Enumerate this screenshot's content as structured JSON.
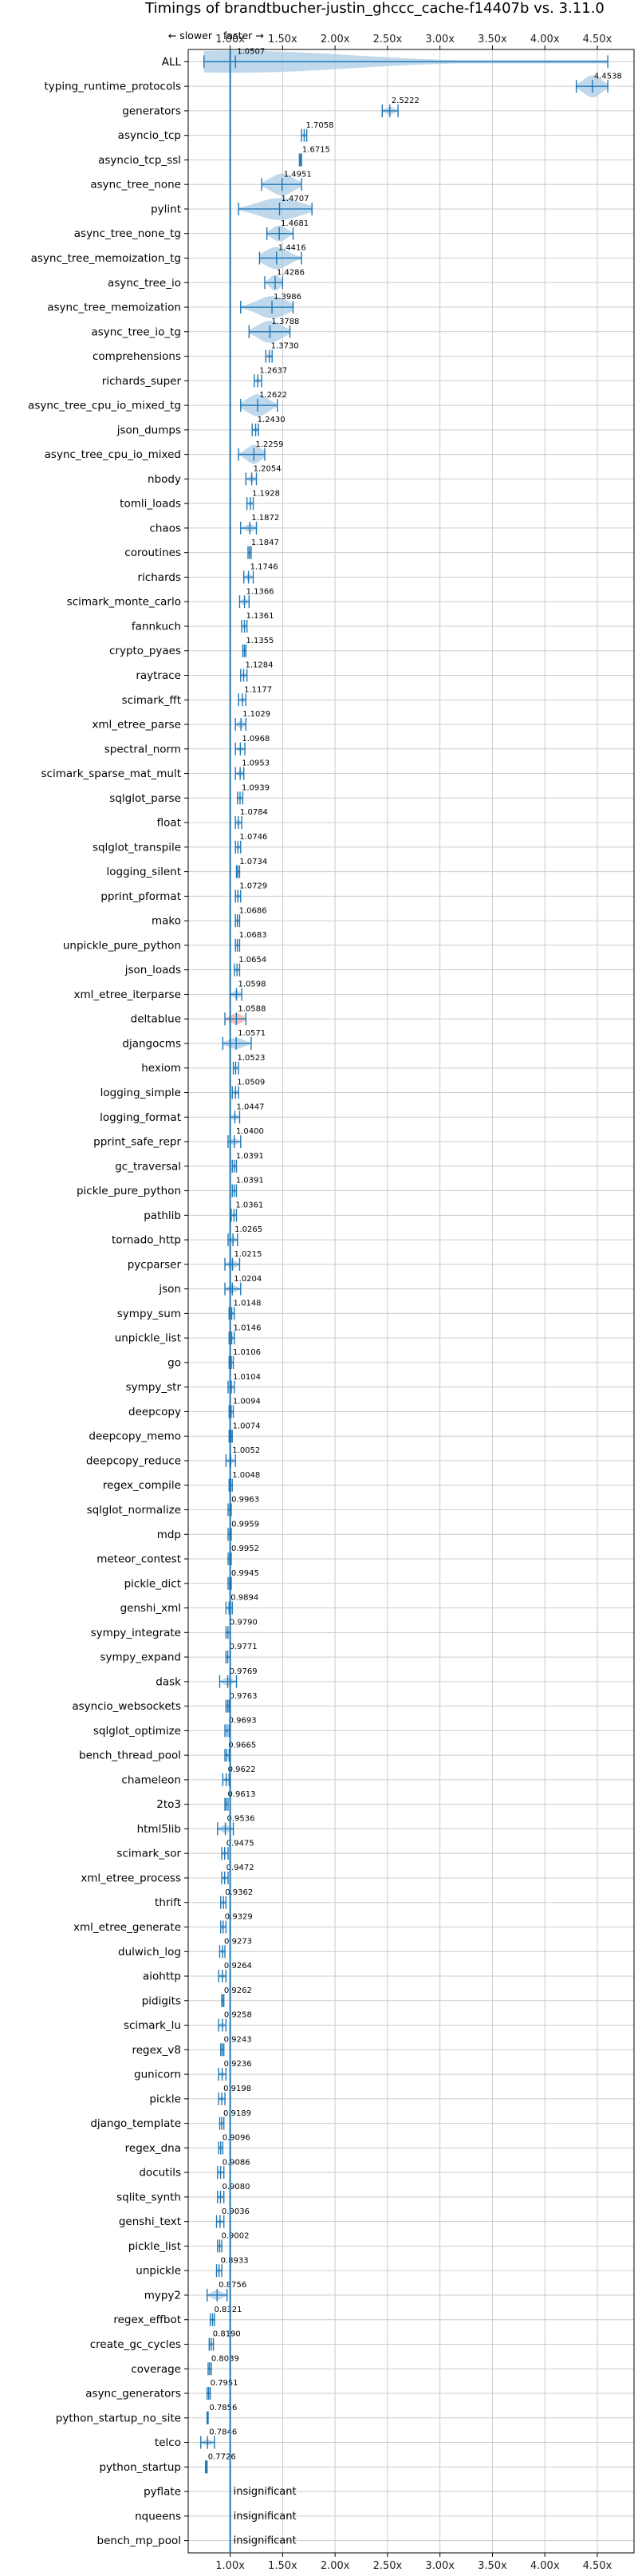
{
  "chart_data": {
    "type": "violin",
    "title": "Timings of brandtbucher-justin_ghccc_cache-f14407b vs. 3.11.0",
    "direction_hint": {
      "slower": "← slower",
      "faster": "faster →"
    },
    "xlim": [
      0.6,
      4.85
    ],
    "x_ticks": [
      1.0,
      1.5,
      2.0,
      2.5,
      3.0,
      3.5,
      4.0,
      4.5
    ],
    "x_tick_labels": [
      "1.00x",
      "1.50x",
      "2.00x",
      "2.50x",
      "3.00x",
      "3.50x",
      "4.00x",
      "4.50x"
    ],
    "reference_line": 1.0,
    "grid": true,
    "insignificant_label": "insignificant",
    "colors": {
      "faster": "#1f77b4",
      "slower": "#d62728",
      "fill_faster": "#a9cbe6",
      "fill_slower": "#f1a9a9"
    },
    "benchmarks": [
      {
        "name": "ALL",
        "value": 1.0507,
        "label": "1.0507",
        "lo": 0.75,
        "hi": 4.6,
        "spread": 0.18
      },
      {
        "name": "typing_runtime_protocols",
        "value": 4.4538,
        "label": "4.4538",
        "lo": 4.3,
        "hi": 4.6,
        "spread": 0.15
      },
      {
        "name": "generators",
        "value": 2.5222,
        "label": "2.5222",
        "lo": 2.45,
        "hi": 2.6,
        "spread": 0.05
      },
      {
        "name": "asyncio_tcp",
        "value": 1.7058,
        "label": "1.7058",
        "lo": 1.68,
        "hi": 1.73,
        "spread": 0.03
      },
      {
        "name": "asyncio_tcp_ssl",
        "value": 1.6715,
        "label": "1.6715",
        "lo": 1.66,
        "hi": 1.68,
        "spread": 0.01
      },
      {
        "name": "async_tree_none",
        "value": 1.4951,
        "label": "1.4951",
        "lo": 1.3,
        "hi": 1.68,
        "spread": 0.15
      },
      {
        "name": "pylint",
        "value": 1.4707,
        "label": "1.4707",
        "lo": 1.08,
        "hi": 1.78,
        "spread": 0.2
      },
      {
        "name": "async_tree_none_tg",
        "value": 1.4681,
        "label": "1.4681",
        "lo": 1.35,
        "hi": 1.6,
        "spread": 0.1
      },
      {
        "name": "async_tree_memoization_tg",
        "value": 1.4416,
        "label": "1.4416",
        "lo": 1.28,
        "hi": 1.68,
        "spread": 0.2
      },
      {
        "name": "async_tree_io",
        "value": 1.4286,
        "label": "1.4286",
        "lo": 1.33,
        "hi": 1.5,
        "spread": 0.1
      },
      {
        "name": "async_tree_memoization",
        "value": 1.3986,
        "label": "1.3986",
        "lo": 1.1,
        "hi": 1.6,
        "spread": 0.18
      },
      {
        "name": "async_tree_io_tg",
        "value": 1.3788,
        "label": "1.3788",
        "lo": 1.18,
        "hi": 1.57,
        "spread": 0.15
      },
      {
        "name": "comprehensions",
        "value": 1.373,
        "label": "1.3730",
        "lo": 1.34,
        "hi": 1.4,
        "spread": 0.03
      },
      {
        "name": "richards_super",
        "value": 1.2637,
        "label": "1.2637",
        "lo": 1.23,
        "hi": 1.3,
        "spread": 0.03
      },
      {
        "name": "async_tree_cpu_io_mixed_tg",
        "value": 1.2622,
        "label": "1.2622",
        "lo": 1.1,
        "hi": 1.45,
        "spread": 0.18
      },
      {
        "name": "json_dumps",
        "value": 1.243,
        "label": "1.2430",
        "lo": 1.21,
        "hi": 1.27,
        "spread": 0.03
      },
      {
        "name": "async_tree_cpu_io_mixed",
        "value": 1.2259,
        "label": "1.2259",
        "lo": 1.08,
        "hi": 1.33,
        "spread": 0.12
      },
      {
        "name": "nbody",
        "value": 1.2054,
        "label": "1.2054",
        "lo": 1.15,
        "hi": 1.25,
        "spread": 0.04
      },
      {
        "name": "tomli_loads",
        "value": 1.1928,
        "label": "1.1928",
        "lo": 1.16,
        "hi": 1.22,
        "spread": 0.03
      },
      {
        "name": "chaos",
        "value": 1.1872,
        "label": "1.1872",
        "lo": 1.1,
        "hi": 1.25,
        "spread": 0.05
      },
      {
        "name": "coroutines",
        "value": 1.1847,
        "label": "1.1847",
        "lo": 1.17,
        "hi": 1.2,
        "spread": 0.02
      },
      {
        "name": "richards",
        "value": 1.1746,
        "label": "1.1746",
        "lo": 1.13,
        "hi": 1.22,
        "spread": 0.04
      },
      {
        "name": "scimark_monte_carlo",
        "value": 1.1366,
        "label": "1.1366",
        "lo": 1.09,
        "hi": 1.18,
        "spread": 0.04
      },
      {
        "name": "fannkuch",
        "value": 1.1361,
        "label": "1.1361",
        "lo": 1.11,
        "hi": 1.16,
        "spread": 0.03
      },
      {
        "name": "crypto_pyaes",
        "value": 1.1355,
        "label": "1.1355",
        "lo": 1.12,
        "hi": 1.15,
        "spread": 0.02
      },
      {
        "name": "raytrace",
        "value": 1.1284,
        "label": "1.1284",
        "lo": 1.1,
        "hi": 1.16,
        "spread": 0.03
      },
      {
        "name": "scimark_fft",
        "value": 1.1177,
        "label": "1.1177",
        "lo": 1.08,
        "hi": 1.15,
        "spread": 0.03
      },
      {
        "name": "xml_etree_parse",
        "value": 1.1029,
        "label": "1.1029",
        "lo": 1.05,
        "hi": 1.15,
        "spread": 0.05
      },
      {
        "name": "spectral_norm",
        "value": 1.0968,
        "label": "1.0968",
        "lo": 1.05,
        "hi": 1.14,
        "spread": 0.03
      },
      {
        "name": "scimark_sparse_mat_mult",
        "value": 1.0953,
        "label": "1.0953",
        "lo": 1.05,
        "hi": 1.13,
        "spread": 0.04
      },
      {
        "name": "sqlglot_parse",
        "value": 1.0939,
        "label": "1.0939",
        "lo": 1.07,
        "hi": 1.12,
        "spread": 0.03
      },
      {
        "name": "float",
        "value": 1.0784,
        "label": "1.0784",
        "lo": 1.05,
        "hi": 1.11,
        "spread": 0.04
      },
      {
        "name": "sqlglot_transpile",
        "value": 1.0746,
        "label": "1.0746",
        "lo": 1.05,
        "hi": 1.1,
        "spread": 0.03
      },
      {
        "name": "logging_silent",
        "value": 1.0734,
        "label": "1.0734",
        "lo": 1.06,
        "hi": 1.09,
        "spread": 0.02
      },
      {
        "name": "pprint_pformat",
        "value": 1.0729,
        "label": "1.0729",
        "lo": 1.05,
        "hi": 1.1,
        "spread": 0.03
      },
      {
        "name": "mako",
        "value": 1.0686,
        "label": "1.0686",
        "lo": 1.05,
        "hi": 1.09,
        "spread": 0.02
      },
      {
        "name": "unpickle_pure_python",
        "value": 1.0683,
        "label": "1.0683",
        "lo": 1.05,
        "hi": 1.09,
        "spread": 0.02
      },
      {
        "name": "json_loads",
        "value": 1.0654,
        "label": "1.0654",
        "lo": 1.04,
        "hi": 1.09,
        "spread": 0.03
      },
      {
        "name": "xml_etree_iterparse",
        "value": 1.0598,
        "label": "1.0598",
        "lo": 1.0,
        "hi": 1.11,
        "spread": 0.05
      },
      {
        "name": "deltablue",
        "value": 1.0588,
        "label": "1.0588",
        "lo": 0.95,
        "hi": 1.15,
        "spread": 0.07,
        "highlight": "red"
      },
      {
        "name": "djangocms",
        "value": 1.0571,
        "label": "1.0571",
        "lo": 0.93,
        "hi": 1.2,
        "spread": 0.07
      },
      {
        "name": "hexiom",
        "value": 1.0523,
        "label": "1.0523",
        "lo": 1.03,
        "hi": 1.08,
        "spread": 0.02
      },
      {
        "name": "logging_simple",
        "value": 1.0509,
        "label": "1.0509",
        "lo": 1.02,
        "hi": 1.08,
        "spread": 0.03
      },
      {
        "name": "logging_format",
        "value": 1.0447,
        "label": "1.0447",
        "lo": 1.0,
        "hi": 1.09,
        "spread": 0.04
      },
      {
        "name": "pprint_safe_repr",
        "value": 1.04,
        "label": "1.0400",
        "lo": 0.98,
        "hi": 1.1,
        "spread": 0.04
      },
      {
        "name": "gc_traversal",
        "value": 1.0391,
        "label": "1.0391",
        "lo": 1.02,
        "hi": 1.06,
        "spread": 0.02
      },
      {
        "name": "pickle_pure_python",
        "value": 1.0391,
        "label": "1.0391",
        "lo": 1.02,
        "hi": 1.06,
        "spread": 0.02
      },
      {
        "name": "pathlib",
        "value": 1.0361,
        "label": "1.0361",
        "lo": 1.01,
        "hi": 1.06,
        "spread": 0.02
      },
      {
        "name": "tornado_http",
        "value": 1.0265,
        "label": "1.0265",
        "lo": 0.98,
        "hi": 1.07,
        "spread": 0.04
      },
      {
        "name": "pycparser",
        "value": 1.0215,
        "label": "1.0215",
        "lo": 0.95,
        "hi": 1.09,
        "spread": 0.05
      },
      {
        "name": "json",
        "value": 1.0204,
        "label": "1.0204",
        "lo": 0.95,
        "hi": 1.1,
        "spread": 0.05
      },
      {
        "name": "sympy_sum",
        "value": 1.0148,
        "label": "1.0148",
        "lo": 0.99,
        "hi": 1.04,
        "spread": 0.02
      },
      {
        "name": "unpickle_list",
        "value": 1.0146,
        "label": "1.0146",
        "lo": 0.99,
        "hi": 1.04,
        "spread": 0.02
      },
      {
        "name": "go",
        "value": 1.0106,
        "label": "1.0106",
        "lo": 0.99,
        "hi": 1.03,
        "spread": 0.02
      },
      {
        "name": "sympy_str",
        "value": 1.0104,
        "label": "1.0104",
        "lo": 0.98,
        "hi": 1.04,
        "spread": 0.02
      },
      {
        "name": "deepcopy",
        "value": 1.0094,
        "label": "1.0094",
        "lo": 0.99,
        "hi": 1.03,
        "spread": 0.02
      },
      {
        "name": "deepcopy_memo",
        "value": 1.0074,
        "label": "1.0074",
        "lo": 0.99,
        "hi": 1.02,
        "spread": 0.02
      },
      {
        "name": "deepcopy_reduce",
        "value": 1.0052,
        "label": "1.0052",
        "lo": 0.96,
        "hi": 1.05,
        "spread": 0.04
      },
      {
        "name": "regex_compile",
        "value": 1.0048,
        "label": "1.0048",
        "lo": 0.99,
        "hi": 1.02,
        "spread": 0.02
      },
      {
        "name": "sqlglot_normalize",
        "value": 0.9963,
        "label": "0.9963",
        "lo": 0.98,
        "hi": 1.01,
        "spread": 0.01
      },
      {
        "name": "mdp",
        "value": 0.9959,
        "label": "0.9959",
        "lo": 0.98,
        "hi": 1.01,
        "spread": 0.01
      },
      {
        "name": "meteor_contest",
        "value": 0.9952,
        "label": "0.9952",
        "lo": 0.98,
        "hi": 1.01,
        "spread": 0.01
      },
      {
        "name": "pickle_dict",
        "value": 0.9945,
        "label": "0.9945",
        "lo": 0.98,
        "hi": 1.01,
        "spread": 0.01
      },
      {
        "name": "genshi_xml",
        "value": 0.9894,
        "label": "0.9894",
        "lo": 0.96,
        "hi": 1.02,
        "spread": 0.03
      },
      {
        "name": "sympy_integrate",
        "value": 0.979,
        "label": "0.9790",
        "lo": 0.96,
        "hi": 1.0,
        "spread": 0.02
      },
      {
        "name": "sympy_expand",
        "value": 0.9771,
        "label": "0.9771",
        "lo": 0.96,
        "hi": 1.0,
        "spread": 0.02
      },
      {
        "name": "dask",
        "value": 0.9769,
        "label": "0.9769",
        "lo": 0.9,
        "hi": 1.06,
        "spread": 0.05
      },
      {
        "name": "asyncio_websockets",
        "value": 0.9763,
        "label": "0.9763",
        "lo": 0.96,
        "hi": 0.99,
        "spread": 0.01
      },
      {
        "name": "sqlglot_optimize",
        "value": 0.9693,
        "label": "0.9693",
        "lo": 0.95,
        "hi": 0.99,
        "spread": 0.02
      },
      {
        "name": "bench_thread_pool",
        "value": 0.9665,
        "label": "0.9665",
        "lo": 0.95,
        "hi": 0.99,
        "spread": 0.01
      },
      {
        "name": "chameleon",
        "value": 0.9622,
        "label": "0.9622",
        "lo": 0.93,
        "hi": 0.99,
        "spread": 0.03
      },
      {
        "name": "2to3",
        "value": 0.9613,
        "label": "0.9613",
        "lo": 0.95,
        "hi": 0.98,
        "spread": 0.01
      },
      {
        "name": "html5lib",
        "value": 0.9536,
        "label": "0.9536",
        "lo": 0.88,
        "hi": 1.03,
        "spread": 0.05
      },
      {
        "name": "scimark_sor",
        "value": 0.9475,
        "label": "0.9475",
        "lo": 0.92,
        "hi": 0.98,
        "spread": 0.02
      },
      {
        "name": "xml_etree_process",
        "value": 0.9472,
        "label": "0.9472",
        "lo": 0.92,
        "hi": 0.98,
        "spread": 0.03
      },
      {
        "name": "thrift",
        "value": 0.9362,
        "label": "0.9362",
        "lo": 0.91,
        "hi": 0.96,
        "spread": 0.02
      },
      {
        "name": "xml_etree_generate",
        "value": 0.9329,
        "label": "0.9329",
        "lo": 0.91,
        "hi": 0.96,
        "spread": 0.02
      },
      {
        "name": "dulwich_log",
        "value": 0.9273,
        "label": "0.9273",
        "lo": 0.9,
        "hi": 0.95,
        "spread": 0.02
      },
      {
        "name": "aiohttp",
        "value": 0.9264,
        "label": "0.9264",
        "lo": 0.89,
        "hi": 0.96,
        "spread": 0.03
      },
      {
        "name": "pidigits",
        "value": 0.9262,
        "label": "0.9262",
        "lo": 0.92,
        "hi": 0.94,
        "spread": 0.01
      },
      {
        "name": "scimark_lu",
        "value": 0.9258,
        "label": "0.9258",
        "lo": 0.89,
        "hi": 0.96,
        "spread": 0.03
      },
      {
        "name": "regex_v8",
        "value": 0.9243,
        "label": "0.9243",
        "lo": 0.91,
        "hi": 0.94,
        "spread": 0.01
      },
      {
        "name": "gunicorn",
        "value": 0.9236,
        "label": "0.9236",
        "lo": 0.89,
        "hi": 0.96,
        "spread": 0.03
      },
      {
        "name": "pickle",
        "value": 0.9198,
        "label": "0.9198",
        "lo": 0.89,
        "hi": 0.95,
        "spread": 0.02
      },
      {
        "name": "django_template",
        "value": 0.9189,
        "label": "0.9189",
        "lo": 0.9,
        "hi": 0.94,
        "spread": 0.02
      },
      {
        "name": "regex_dna",
        "value": 0.9096,
        "label": "0.9096",
        "lo": 0.89,
        "hi": 0.93,
        "spread": 0.02
      },
      {
        "name": "docutils",
        "value": 0.9086,
        "label": "0.9086",
        "lo": 0.88,
        "hi": 0.94,
        "spread": 0.02
      },
      {
        "name": "sqlite_synth",
        "value": 0.908,
        "label": "0.9080",
        "lo": 0.88,
        "hi": 0.94,
        "spread": 0.03
      },
      {
        "name": "genshi_text",
        "value": 0.9036,
        "label": "0.9036",
        "lo": 0.87,
        "hi": 0.94,
        "spread": 0.03
      },
      {
        "name": "pickle_list",
        "value": 0.9002,
        "label": "0.9002",
        "lo": 0.88,
        "hi": 0.92,
        "spread": 0.02
      },
      {
        "name": "unpickle",
        "value": 0.8933,
        "label": "0.8933",
        "lo": 0.87,
        "hi": 0.92,
        "spread": 0.02
      },
      {
        "name": "mypy2",
        "value": 0.8756,
        "label": "0.8756",
        "lo": 0.78,
        "hi": 0.97,
        "spread": 0.06
      },
      {
        "name": "regex_effbot",
        "value": 0.8321,
        "label": "0.8321",
        "lo": 0.81,
        "hi": 0.85,
        "spread": 0.02
      },
      {
        "name": "create_gc_cycles",
        "value": 0.819,
        "label": "0.8190",
        "lo": 0.8,
        "hi": 0.84,
        "spread": 0.02
      },
      {
        "name": "coverage",
        "value": 0.8039,
        "label": "0.8039",
        "lo": 0.79,
        "hi": 0.82,
        "spread": 0.02
      },
      {
        "name": "async_generators",
        "value": 0.7951,
        "label": "0.7951",
        "lo": 0.78,
        "hi": 0.81,
        "spread": 0.01
      },
      {
        "name": "python_startup_no_site",
        "value": 0.7856,
        "label": "0.7856",
        "lo": 0.78,
        "hi": 0.79,
        "spread": 0.01
      },
      {
        "name": "telco",
        "value": 0.7846,
        "label": "0.7846",
        "lo": 0.72,
        "hi": 0.85,
        "spread": 0.04
      },
      {
        "name": "python_startup",
        "value": 0.7726,
        "label": "0.7726",
        "lo": 0.765,
        "hi": 0.78,
        "spread": 0.01
      },
      {
        "name": "pyflate",
        "insignificant": true
      },
      {
        "name": "nqueens",
        "insignificant": true
      },
      {
        "name": "bench_mp_pool",
        "insignificant": true
      }
    ]
  }
}
